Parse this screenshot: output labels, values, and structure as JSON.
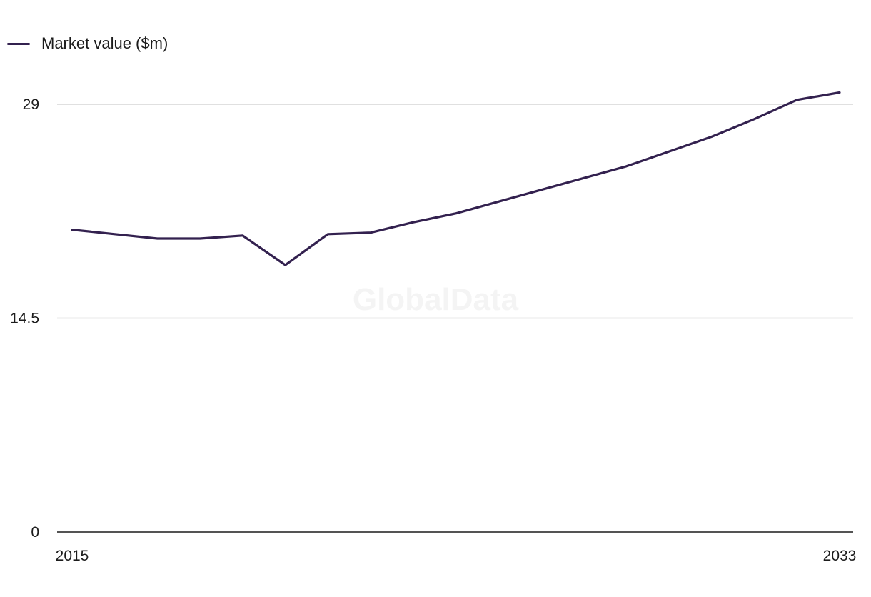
{
  "legend": {
    "label": "Market value ($m)",
    "color": "#33214f"
  },
  "watermark": {
    "text": "GlobalData"
  },
  "chart_data": {
    "type": "line",
    "x": [
      2015,
      2016,
      2017,
      2018,
      2019,
      2020,
      2021,
      2022,
      2023,
      2024,
      2025,
      2026,
      2027,
      2028,
      2029,
      2030,
      2031,
      2032,
      2033
    ],
    "series": [
      {
        "name": "Market value ($m)",
        "color": "#33214f",
        "values": [
          20.5,
          20.2,
          19.9,
          19.9,
          20.1,
          18.1,
          20.2,
          20.3,
          21.0,
          21.6,
          22.4,
          23.2,
          24.0,
          24.8,
          25.8,
          26.8,
          28.0,
          29.3,
          29.8
        ]
      }
    ],
    "xlim": [
      2015,
      2033
    ],
    "ylim": [
      0,
      29
    ],
    "yticks": [
      {
        "value": 0,
        "label": "0"
      },
      {
        "value": 14.5,
        "label": "14.5"
      },
      {
        "value": 29,
        "label": "29"
      }
    ],
    "xtick_labels": [
      {
        "value": 2015,
        "label": "2015"
      },
      {
        "value": 2033,
        "label": "2033"
      }
    ],
    "grid": true,
    "legend_position": "top-left"
  }
}
